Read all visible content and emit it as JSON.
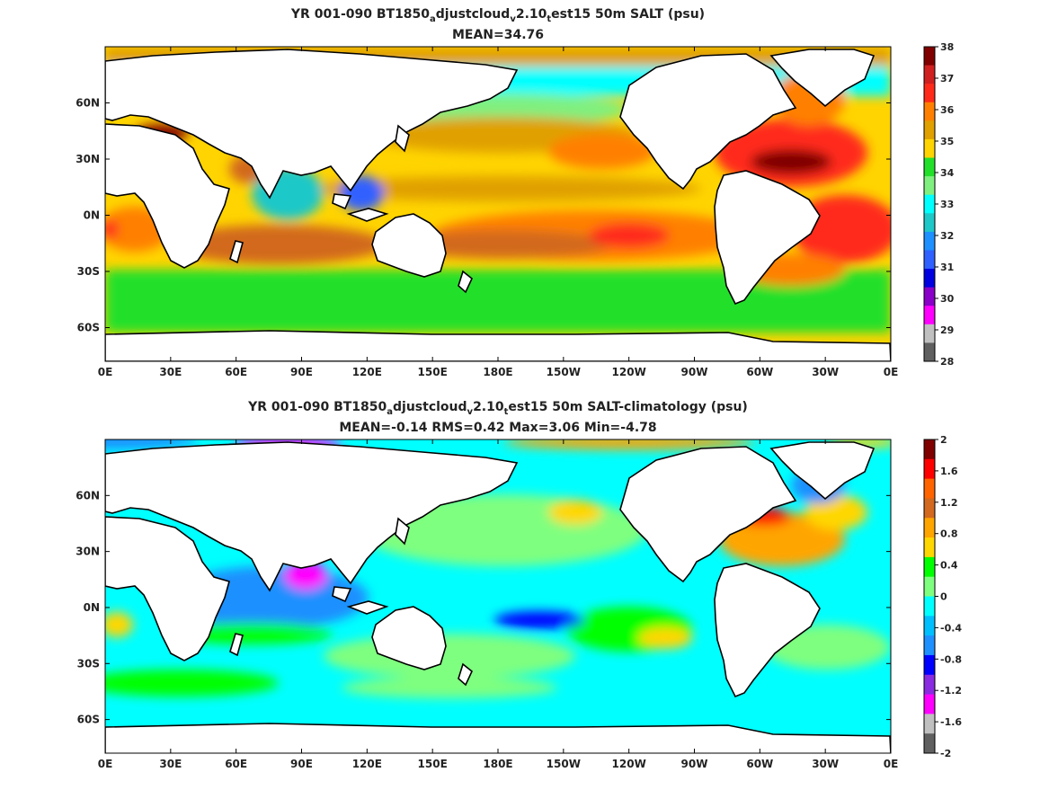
{
  "panels": [
    {
      "title_parts": [
        "YR 001-090 BT1850",
        "a",
        "djustcloud",
        "v",
        "2.10",
        "t",
        "est15 50m SALT (psu)"
      ],
      "stats": "MEAN=34.76",
      "colorbar": {
        "labels": [
          "38",
          "37",
          "36",
          "35",
          "34",
          "33",
          "32",
          "31",
          "30",
          "29",
          "28"
        ],
        "colors": [
          "#800000",
          "#d02020",
          "#ff2a1a",
          "#ff8000",
          "#e0a000",
          "#ffd400",
          "#22e02a",
          "#7ff07f",
          "#00ffff",
          "#1fc8c8",
          "#1e90ff",
          "#3060ff",
          "#0000e0",
          "#8a00c8",
          "#ff00ff",
          "#c0c0c0",
          "#606060"
        ]
      }
    },
    {
      "title_parts": [
        "YR 001-090 BT1850",
        "a",
        "djustcloud",
        "v",
        "2.10",
        "t",
        "est15 50m SALT-climatology (psu)"
      ],
      "stats": "MEAN=-0.14   RMS=0.42   Max=3.06   Min=-4.78",
      "colorbar": {
        "labels": [
          "2",
          "1.6",
          "1.2",
          "0.8",
          "0.4",
          "0",
          "-0.4",
          "-0.8",
          "-1.2",
          "-1.6",
          "-2"
        ],
        "colors": [
          "#800000",
          "#ff0000",
          "#ff6400",
          "#d2691e",
          "#ffa500",
          "#ffd700",
          "#00ff00",
          "#7fff7f",
          "#00ffff",
          "#00bfff",
          "#1e90ff",
          "#0000ff",
          "#8a2be2",
          "#ff00ff",
          "#c0c0c0",
          "#606060"
        ]
      }
    }
  ],
  "map": {
    "lon_labels": [
      "0E",
      "30E",
      "60E",
      "90E",
      "120E",
      "150E",
      "180E",
      "150W",
      "120W",
      "90W",
      "60W",
      "30W",
      "0E"
    ],
    "lat_labels": [
      "60N",
      "30N",
      "0N",
      "30S",
      "60S"
    ],
    "lat_values": [
      60,
      30,
      0,
      -30,
      -60
    ],
    "lat_range": [
      -78,
      90
    ],
    "lon_range": [
      0,
      360
    ]
  }
}
